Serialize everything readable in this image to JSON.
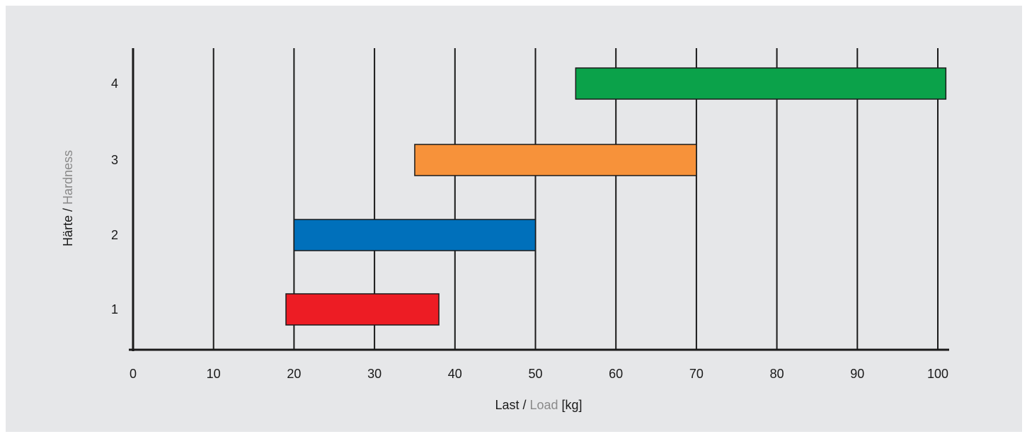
{
  "chart_data": {
    "type": "bar",
    "orientation": "horizontal-range",
    "xlabel": {
      "primary": "Last",
      "separator": " / ",
      "secondary": "Load",
      "unit": " [kg]"
    },
    "ylabel": {
      "primary": "Härte",
      "separator": " / ",
      "secondary": "Hardness"
    },
    "xlim": [
      0,
      102
    ],
    "x_ticks": [
      0,
      10,
      20,
      30,
      40,
      50,
      60,
      70,
      80,
      90,
      100
    ],
    "categories": [
      "1",
      "2",
      "3",
      "4"
    ],
    "ranges": [
      {
        "category": "1",
        "start": 19,
        "end": 38,
        "color": "#ed1c24"
      },
      {
        "category": "2",
        "start": 20,
        "end": 50,
        "color": "#0070bb"
      },
      {
        "category": "3",
        "start": 35,
        "end": 70,
        "color": "#f7923a"
      },
      {
        "category": "4",
        "start": 55,
        "end": 101,
        "color": "#0ba24a"
      }
    ],
    "grid": {
      "vertical": true,
      "horizontal": false
    },
    "colors": {
      "background": "#e6e7e9",
      "grid": "#1a1a1a",
      "label_secondary": "#8a8a8a"
    }
  }
}
